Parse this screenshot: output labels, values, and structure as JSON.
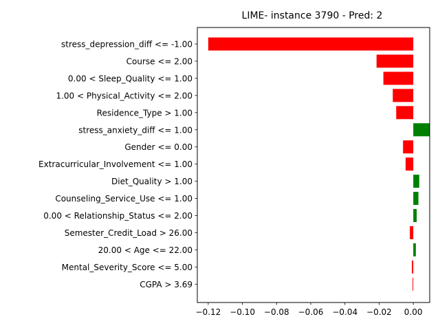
{
  "chart_data": {
    "type": "bar",
    "orientation": "horizontal",
    "title": "LIME- instance 3790 - Pred: 2",
    "xlabel": "",
    "ylabel": "",
    "xlim": [
      -0.1264,
      0.0096
    ],
    "xticks": [
      -0.12,
      -0.1,
      -0.08,
      -0.06,
      -0.04,
      -0.02,
      0.0
    ],
    "xtick_labels": [
      "−0.12",
      "−0.10",
      "−0.08",
      "−0.06",
      "−0.04",
      "−0.02",
      "0.00"
    ],
    "grid": false,
    "colors": {
      "negative": "#ff0000",
      "positive": "#008000"
    },
    "categories": [
      "stress_depression_diff <= -1.00",
      "Course <= 2.00",
      "0.00 < Sleep_Quality <= 1.00",
      "1.00 < Physical_Activity <= 2.00",
      "Residence_Type > 1.00",
      "stress_anxiety_diff <= 1.00",
      "Gender <= 0.00",
      "Extracurricular_Involvement <= 1.00",
      "Diet_Quality > 1.00",
      "Counseling_Service_Use <= 1.00",
      "0.00 < Relationship_Status <= 2.00",
      "Semester_Credit_Load > 26.00",
      "20.00 < Age <= 22.00",
      "Mental_Severity_Score <= 5.00",
      "CGPA > 3.69"
    ],
    "values": [
      -0.12,
      -0.0215,
      -0.0175,
      -0.012,
      -0.01,
      0.0095,
      -0.006,
      -0.0045,
      0.0035,
      0.003,
      0.002,
      -0.002,
      0.0015,
      -0.0008,
      -0.0004
    ]
  }
}
